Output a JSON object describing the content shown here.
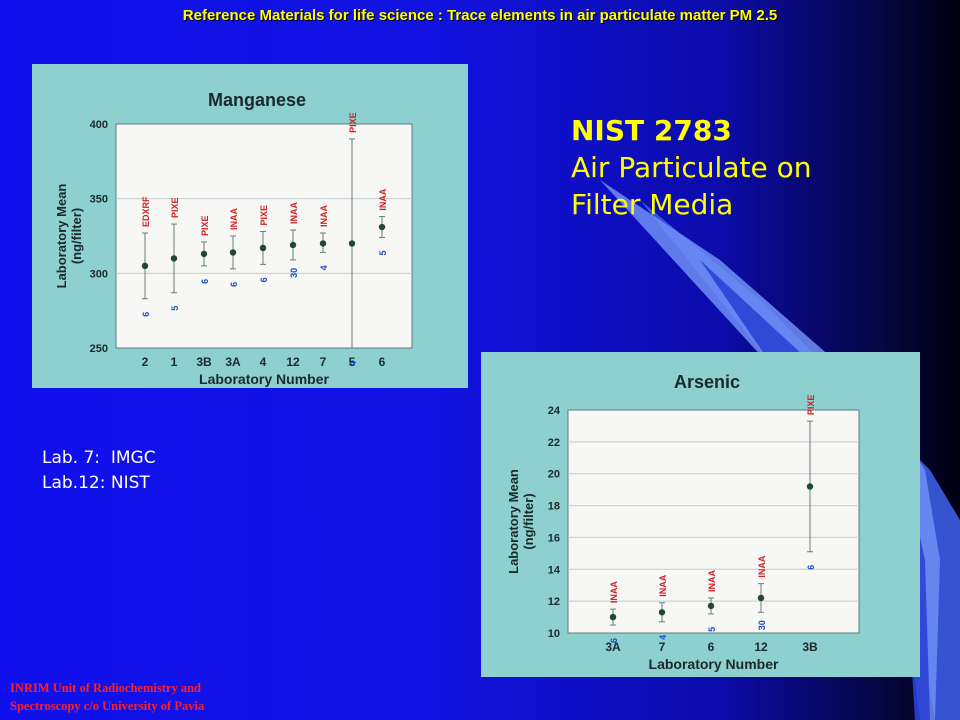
{
  "slide": {
    "header": "Reference Materials for life science : Trace elements in air particulate matter  PM 2.5",
    "title_line1": "NIST 2783",
    "title_line2": "Air Particulate on",
    "title_line3": "Filter Media",
    "lab_notes": [
      "Lab. 7:  IMGC",
      "Lab.12: NIST"
    ],
    "footer_line1": "INRIM Unit of Radiochemistry and",
    "footer_line2": "Spectroscopy c/o University of Pavia",
    "colors": {
      "title": "#ffff00",
      "footer": "#ff2020",
      "point": "#1f4a2e",
      "method_label": "#d02020",
      "n_label": "#1a4fc0"
    }
  },
  "chart_data": [
    {
      "type": "scatter",
      "title": "Manganese",
      "xlabel": "Laboratory Number",
      "ylabel": "Laboratory Mean (ng/filter)",
      "ylim": [
        250,
        400
      ],
      "yticks": [
        250,
        300,
        350,
        400
      ],
      "grid": true,
      "categories": [
        "2",
        "1",
        "3B",
        "3A",
        "4",
        "12",
        "7",
        "5",
        "6"
      ],
      "values": [
        305,
        310,
        313,
        314,
        317,
        319,
        320,
        320,
        331
      ],
      "err_low": [
        283,
        287,
        305,
        303,
        306,
        309,
        314,
        250,
        324
      ],
      "err_high": [
        327,
        333,
        321,
        325,
        328,
        329,
        327,
        390,
        338
      ],
      "methods": [
        "EDXRF",
        "PIXE",
        "PIXE",
        "INAA",
        "PIXE",
        "INAA",
        "INAA",
        "PIXE",
        "INAA"
      ],
      "n": [
        "6",
        "5",
        "6",
        "6",
        "6",
        "30",
        "4",
        "4",
        "5"
      ]
    },
    {
      "type": "scatter",
      "title": "Arsenic",
      "xlabel": "Laboratory Number",
      "ylabel": "Laboratory Mean (ng/filter)",
      "ylim": [
        10,
        24
      ],
      "yticks": [
        10,
        12,
        14,
        16,
        18,
        20,
        22,
        24
      ],
      "grid": true,
      "categories": [
        "3A",
        "7",
        "6",
        "12",
        "3B"
      ],
      "values": [
        11.0,
        11.3,
        11.7,
        12.2,
        19.2
      ],
      "err_low": [
        10.5,
        10.7,
        11.2,
        11.3,
        15.1
      ],
      "err_high": [
        11.5,
        11.9,
        12.2,
        13.1,
        23.3
      ],
      "methods": [
        "INAA",
        "INAA",
        "INAA",
        "INAA",
        "PIXE"
      ],
      "n": [
        "6",
        "4",
        "5",
        "30",
        "6"
      ]
    }
  ]
}
